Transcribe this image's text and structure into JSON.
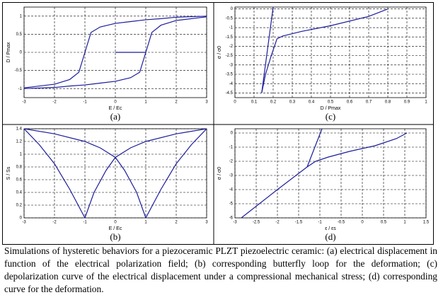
{
  "chart_data": [
    {
      "type": "line",
      "panel_label": "(a)",
      "xlabel": "E / Ec",
      "ylabel": "D / Pmax",
      "xlim": [
        -3,
        3
      ],
      "xticks": [
        -3,
        -2,
        -1,
        0,
        1,
        2,
        3
      ],
      "ylim": [
        -1.25,
        1.25
      ],
      "yticks": [
        -1,
        -0.5,
        0,
        0.5,
        1
      ],
      "grid": true,
      "series": [
        {
          "color": "#1c1c9c",
          "x": [
            3,
            2,
            1.5,
            1,
            0.5,
            0,
            -0.5,
            -0.8,
            -1,
            -1.2,
            -1.5,
            -2,
            -3
          ],
          "values": [
            1.0,
            0.97,
            0.93,
            0.9,
            0.85,
            0.8,
            0.7,
            0.55,
            0,
            -0.55,
            -0.75,
            -0.88,
            -0.98
          ]
        },
        {
          "color": "#1c1c9c",
          "x": [
            -3,
            -2,
            -1.5,
            -1,
            -0.5,
            0,
            0.5,
            0.8,
            1,
            1.2,
            1.5,
            2,
            3
          ],
          "values": [
            -1.0,
            -0.97,
            -0.93,
            -0.9,
            -0.85,
            -0.8,
            -0.7,
            -0.55,
            0,
            0.55,
            0.75,
            0.88,
            0.98
          ]
        },
        {
          "color": "#1c1c9c",
          "x": [
            0,
            0.5,
            1
          ],
          "values": [
            0,
            0,
            0
          ]
        }
      ]
    },
    {
      "type": "line",
      "panel_label": "(b)",
      "xlabel": "E / Ec",
      "ylabel": "S / Ss",
      "xlim": [
        -3,
        3
      ],
      "xticks": [
        -3,
        -2,
        -1,
        0,
        1,
        2,
        3
      ],
      "ylim": [
        0,
        1.4
      ],
      "yticks": [
        0,
        0.2,
        0.4,
        0.6,
        0.8,
        1,
        1.2,
        1.4
      ],
      "grid": true,
      "series": [
        {
          "color": "#1c1c9c",
          "x": [
            -3,
            -2.5,
            -2,
            -1.5,
            -1,
            -0.7,
            -0.3,
            0,
            0.5,
            1,
            2,
            3
          ],
          "values": [
            1.4,
            1.15,
            0.85,
            0.45,
            0,
            0.4,
            0.75,
            0.95,
            1.1,
            1.2,
            1.32,
            1.4
          ]
        },
        {
          "color": "#1c1c9c",
          "x": [
            3,
            2.5,
            2,
            1.5,
            1,
            0.7,
            0.3,
            0,
            -0.5,
            -1,
            -2,
            -3
          ],
          "values": [
            1.4,
            1.15,
            0.85,
            0.45,
            0,
            0.4,
            0.75,
            0.95,
            1.1,
            1.2,
            1.32,
            1.4
          ]
        }
      ]
    },
    {
      "type": "line",
      "panel_label": "(c)",
      "xlabel": "D / Pmax",
      "ylabel": "σ / σ0",
      "xlim": [
        0,
        1
      ],
      "xticks": [
        0,
        0.1,
        0.2,
        0.3,
        0.4,
        0.5,
        0.6,
        0.7,
        0.8,
        0.9,
        1
      ],
      "ylim": [
        -4.75,
        0.1
      ],
      "yticks": [
        -4.5,
        -4,
        -3.5,
        -3,
        -2.5,
        -2,
        -1.5,
        -1,
        -0.5,
        0
      ],
      "grid": true,
      "series": [
        {
          "color": "#1c1c9c",
          "x": [
            0.8,
            0.7,
            0.5,
            0.35,
            0.25,
            0.22,
            0.19,
            0.16,
            0.14
          ],
          "values": [
            0,
            -0.4,
            -0.9,
            -1.2,
            -1.45,
            -1.6,
            -2.5,
            -3.5,
            -4.5
          ]
        },
        {
          "color": "#1c1c9c",
          "x": [
            0.14,
            0.2
          ],
          "values": [
            -4.5,
            0.1
          ]
        }
      ]
    },
    {
      "type": "line",
      "panel_label": "(d)",
      "xlabel": "ε / εs",
      "ylabel": "σ / σ0",
      "xlim": [
        -3,
        1.5
      ],
      "xticks": [
        -3,
        -2.5,
        -2,
        -1.5,
        -1,
        -0.5,
        0,
        0.5,
        1,
        1.5
      ],
      "ylim": [
        -6,
        0.3
      ],
      "yticks": [
        -6,
        -5,
        -4,
        -3,
        -2,
        -1,
        0
      ],
      "grid": true,
      "series": [
        {
          "color": "#1c1c9c",
          "x": [
            -2.85,
            -2,
            -1.3,
            -1.1,
            -0.8,
            -0.3,
            0.3,
            0.8,
            1.05
          ],
          "values": [
            -6,
            -4,
            -2.4,
            -2.0,
            -1.7,
            -1.3,
            -0.9,
            -0.4,
            0
          ]
        },
        {
          "color": "#1c1c9c",
          "x": [
            -1.3,
            -0.95
          ],
          "values": [
            -2.4,
            0.3
          ]
        }
      ]
    }
  ],
  "caption": "Simulations of hysteretic behaviors for a piezoceramic PLZT piezoelectric ceramic: (a) electrical displacement in function of the electrical polarization field; (b) corresponding butterfly loop for the deformation; (c) depolarization curve of the electrical displacement under a compressional mechanical stress; (d) corresponding curve for the deformation."
}
